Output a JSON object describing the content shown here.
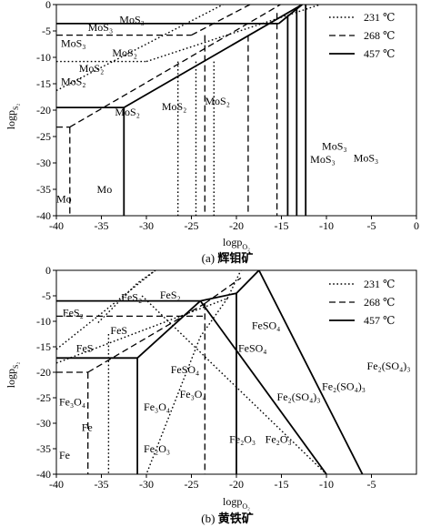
{
  "panels": [
    {
      "id": "a",
      "caption_letter": "(a)",
      "caption_text": "辉钼矿",
      "x_axis_label": "logp",
      "x_axis_sub": "O₂",
      "y_axis_label": "logp",
      "y_axis_sub": "S₂",
      "x_ticks": [
        "-40",
        "-35",
        "-30",
        "-25",
        "-20",
        "-15",
        "-10",
        "-5",
        "0"
      ],
      "y_ticks": [
        "0",
        "-5",
        "-10",
        "-15",
        "-20",
        "-25",
        "-30",
        "-35",
        "-40"
      ],
      "legend": [
        {
          "style": "dotted",
          "label": "231 ℃"
        },
        {
          "style": "dashed",
          "label": "268 ℃"
        },
        {
          "style": "solid",
          "label": "457 ℃"
        }
      ],
      "region_labels": [
        {
          "text": "MoS₃",
          "pos": [
            -33.0,
            -3.5
          ]
        },
        {
          "text": "MoS₃",
          "pos": [
            -36.5,
            -5.0
          ]
        },
        {
          "text": "MoS₃",
          "pos": [
            -39.5,
            -8.0
          ]
        },
        {
          "text": "MoS₂",
          "pos": [
            -33.8,
            -9.8
          ]
        },
        {
          "text": "MoS₂",
          "pos": [
            -37.5,
            -12.8
          ]
        },
        {
          "text": "MoS₂",
          "pos": [
            -39.5,
            -15.3
          ]
        },
        {
          "text": "MoS₂",
          "pos": [
            -33.5,
            -21.0
          ]
        },
        {
          "text": "MoS₂",
          "pos": [
            -28.3,
            -20.0
          ]
        },
        {
          "text": "MoS₂",
          "pos": [
            -23.5,
            -19.0
          ]
        },
        {
          "text": "MoS₃",
          "pos": [
            -10.5,
            -27.5
          ]
        },
        {
          "text": "MoS₃",
          "pos": [
            -11.8,
            -30.0
          ]
        },
        {
          "text": "MoS₃",
          "pos": [
            -7.0,
            -29.7
          ]
        },
        {
          "text": "Mo",
          "pos": [
            -35.5,
            -35.7
          ]
        },
        {
          "text": "Mo",
          "pos": [
            -40.0,
            -37.5
          ]
        }
      ]
    },
    {
      "id": "b",
      "caption_letter": "(b)",
      "caption_text": "黄铁矿",
      "x_axis_label": "logp",
      "x_axis_sub": "O₂",
      "y_axis_label": "logp",
      "y_axis_sub": "S₂",
      "x_ticks": [
        "-40",
        "-35",
        "-30",
        "-25",
        "-20",
        "-15",
        "-10",
        "-5"
      ],
      "y_ticks": [
        "0",
        "-5",
        "-10",
        "-15",
        "-20",
        "-25",
        "-30",
        "-35",
        "-40"
      ],
      "legend": [
        {
          "style": "dotted",
          "label": "231 ℃"
        },
        {
          "style": "dashed",
          "label": "268 ℃"
        },
        {
          "style": "solid",
          "label": "457 ℃"
        }
      ],
      "region_labels": [
        {
          "text": "FeS₂",
          "pos": [
            -32.8,
            -6.0
          ]
        },
        {
          "text": "FeS₂",
          "pos": [
            -28.5,
            -5.5
          ]
        },
        {
          "text": "FeS₂",
          "pos": [
            -39.3,
            -9.0
          ]
        },
        {
          "text": "FeS",
          "pos": [
            -34.0,
            -12.5
          ]
        },
        {
          "text": "FeS",
          "pos": [
            -37.8,
            -16.0
          ]
        },
        {
          "text": "FeSO₄",
          "pos": [
            -18.3,
            -11.5
          ]
        },
        {
          "text": "FeSO₄",
          "pos": [
            -19.8,
            -16.0
          ]
        },
        {
          "text": "FeSO₄",
          "pos": [
            -27.3,
            -20.2
          ]
        },
        {
          "text": "Fe₂(SO₄)₃",
          "pos": [
            -5.5,
            -19.5
          ]
        },
        {
          "text": "Fe₂(SO₄)₃",
          "pos": [
            -10.5,
            -23.5
          ]
        },
        {
          "text": "Fe₂(SO₄)₃",
          "pos": [
            -15.5,
            -25.5
          ]
        },
        {
          "text": "Fe₃O₄",
          "pos": [
            -39.7,
            -26.5
          ]
        },
        {
          "text": "Fe₃O₄",
          "pos": [
            -30.3,
            -27.5
          ]
        },
        {
          "text": "Fe₃O₄",
          "pos": [
            -26.3,
            -25.0
          ]
        },
        {
          "text": "Fe",
          "pos": [
            -37.2,
            -31.5
          ]
        },
        {
          "text": "Fe",
          "pos": [
            -39.7,
            -37.0
          ]
        },
        {
          "text": "Fe₂O₃",
          "pos": [
            -30.3,
            -35.7
          ]
        },
        {
          "text": "Fe₂O₃",
          "pos": [
            -20.8,
            -33.8
          ]
        },
        {
          "text": "Fe₂O₃",
          "pos": [
            -16.8,
            -33.8
          ]
        }
      ]
    }
  ],
  "chart_data": [
    {
      "type": "line",
      "xlabel": "logpO₂",
      "ylabel": "logpS₂",
      "xlim": [
        -40,
        0
      ],
      "ylim": [
        -40,
        0
      ],
      "series": [
        {
          "name": "231 ℃",
          "style": "dotted",
          "segments": [
            [
              [
                -40,
                -10.8
              ],
              [
                -30,
                -10.8
              ]
            ],
            [
              [
                -40,
                -16.3
              ],
              [
                -21.5,
                0
              ]
            ],
            [
              [
                -30,
                -10.8
              ],
              [
                -10.7,
                0
              ]
            ],
            [
              [
                -26.5,
                -10.8
              ],
              [
                -26.5,
                -40
              ]
            ],
            [
              [
                -24.5,
                -10.8
              ],
              [
                -24.5,
                -40
              ]
            ],
            [
              [
                -22.5,
                -10.8
              ],
              [
                -22.5,
                -40
              ]
            ]
          ]
        },
        {
          "name": "268 ℃",
          "style": "dashed",
          "segments": [
            [
              [
                -40,
                -5.8
              ],
              [
                -25,
                -5.8
              ]
            ],
            [
              [
                -38.5,
                -23.2
              ],
              [
                -38.5,
                -40
              ]
            ],
            [
              [
                -40,
                -23.2
              ],
              [
                -38.5,
                -23.2
              ]
            ],
            [
              [
                -38.5,
                -23.2
              ],
              [
                -15.1,
                0
              ]
            ],
            [
              [
                -23.5,
                -5.8
              ],
              [
                -23.5,
                -40
              ]
            ],
            [
              [
                -18.7,
                -5.8
              ],
              [
                -18.7,
                -40
              ]
            ],
            [
              [
                -15.5,
                -1.6
              ],
              [
                -15.5,
                -40
              ]
            ],
            [
              [
                -25,
                -5.8
              ],
              [
                -18.5,
                0
              ]
            ]
          ]
        },
        {
          "name": "457 ℃",
          "style": "solid",
          "segments": [
            [
              [
                -40,
                -3.6
              ],
              [
                -15.3,
                -3.6
              ]
            ],
            [
              [
                -40,
                -19.5
              ],
              [
                -32.5,
                -19.5
              ]
            ],
            [
              [
                -32.5,
                -19.5
              ],
              [
                -32.5,
                -40
              ]
            ],
            [
              [
                -32.5,
                -19.5
              ],
              [
                -12.7,
                0
              ]
            ],
            [
              [
                -15.3,
                -3.6
              ],
              [
                -12.7,
                0
              ]
            ],
            [
              [
                -14.3,
                -2.0
              ],
              [
                -14.3,
                -40
              ]
            ],
            [
              [
                -13.3,
                -0.8
              ],
              [
                -13.3,
                -40
              ]
            ],
            [
              [
                -12.3,
                0
              ],
              [
                -12.3,
                -40
              ]
            ]
          ]
        }
      ]
    },
    {
      "type": "line",
      "xlabel": "logpO₂",
      "ylabel": "logpS₂",
      "xlim": [
        -40,
        0
      ],
      "ylim": [
        -40,
        0
      ],
      "series": [
        {
          "name": "231 ℃",
          "style": "dotted",
          "segments": [
            [
              [
                -40,
                -15.5
              ],
              [
                -29.0,
                0
              ]
            ],
            [
              [
                -40,
                -18.2
              ],
              [
                -21,
                -5.5
              ]
            ],
            [
              [
                -29.0,
                0
              ],
              [
                -31.0,
                -2.5
              ],
              [
                -35.5,
                -10.5
              ]
            ],
            [
              [
                -34.2,
                -12.5
              ],
              [
                -34.2,
                -40
              ]
            ],
            [
              [
                -30.5,
                -5.0
              ],
              [
                -10,
                -40
              ]
            ],
            [
              [
                -21,
                -5.5
              ],
              [
                -24.0,
                -13.0
              ],
              [
                -30,
                -40
              ]
            ],
            [
              [
                -21,
                -5.5
              ],
              [
                -19.5,
                0
              ]
            ]
          ]
        },
        {
          "name": "268 ℃",
          "style": "dashed",
          "segments": [
            [
              [
                -40,
                -9.0
              ],
              [
                -23.5,
                -9.0
              ]
            ],
            [
              [
                -36.5,
                -20.0
              ],
              [
                -36.5,
                -40
              ]
            ],
            [
              [
                -40,
                -20.0
              ],
              [
                -36.5,
                -20.0
              ]
            ],
            [
              [
                -36.5,
                -20.0
              ],
              [
                -23.5,
                -6.5
              ]
            ],
            [
              [
                -23.5,
                -6.5
              ],
              [
                -23.5,
                -40
              ]
            ],
            [
              [
                -23.5,
                -6.5
              ],
              [
                -19.5,
                -1.5
              ]
            ]
          ]
        },
        {
          "name": "457 ℃",
          "style": "solid",
          "segments": [
            [
              [
                -40,
                -6.0
              ],
              [
                -24.0,
                -6.0
              ]
            ],
            [
              [
                -40,
                -17.2
              ],
              [
                -31.0,
                -17.2
              ]
            ],
            [
              [
                -31.0,
                -17.2
              ],
              [
                -31.0,
                -40
              ]
            ],
            [
              [
                -31.0,
                -17.2
              ],
              [
                -24.0,
                -6.0
              ]
            ],
            [
              [
                -24.0,
                -6.0
              ],
              [
                -20.0,
                -4.5
              ]
            ],
            [
              [
                -20.0,
                -4.5
              ],
              [
                -20.0,
                -40
              ]
            ],
            [
              [
                -20.0,
                -4.5
              ],
              [
                -17.5,
                0
              ]
            ],
            [
              [
                -17.5,
                0
              ],
              [
                -6.0,
                -40
              ]
            ],
            [
              [
                -24.0,
                -6.0
              ],
              [
                -10.0,
                -40
              ]
            ]
          ]
        }
      ]
    }
  ]
}
